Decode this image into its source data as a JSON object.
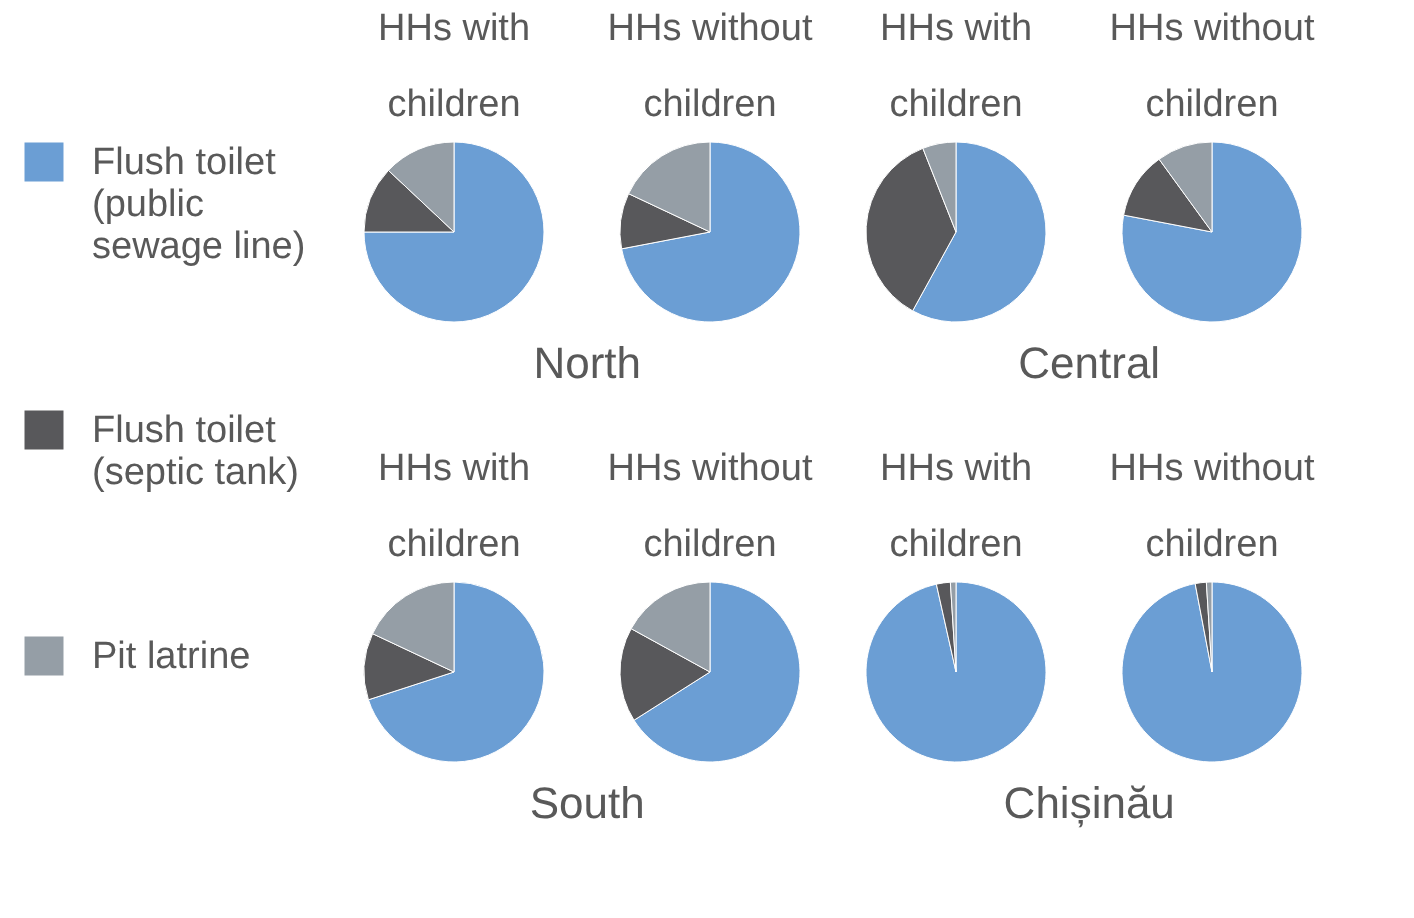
{
  "chart_data": {
    "type": "pie",
    "categories": [
      "Flush toilet (public sewage line)",
      "Flush toilet (septic tank)",
      "Pit latrine"
    ],
    "colors": [
      "#6b9ed4",
      "#58585b",
      "#959ea6"
    ],
    "legend": "left",
    "annotations": [
      "North",
      "Central",
      "South",
      "Chișinău"
    ],
    "series": [
      {
        "name": "HHs with children",
        "values": [
          75,
          12,
          13
        ]
      },
      {
        "name": "HHs without children",
        "values": [
          72,
          10,
          18
        ]
      },
      {
        "name": "HHs with children",
        "values": [
          58,
          36,
          6
        ]
      },
      {
        "name": "HHs without children",
        "values": [
          78,
          12,
          10
        ]
      },
      {
        "name": "HHs with children",
        "values": [
          70,
          12,
          18
        ]
      },
      {
        "name": "HHs without children",
        "values": [
          66,
          17,
          17
        ]
      },
      {
        "name": "HHs with children",
        "values": [
          96.5,
          2.5,
          1
        ]
      },
      {
        "name": "HHs without children",
        "values": [
          97,
          2,
          1
        ]
      }
    ]
  }
}
